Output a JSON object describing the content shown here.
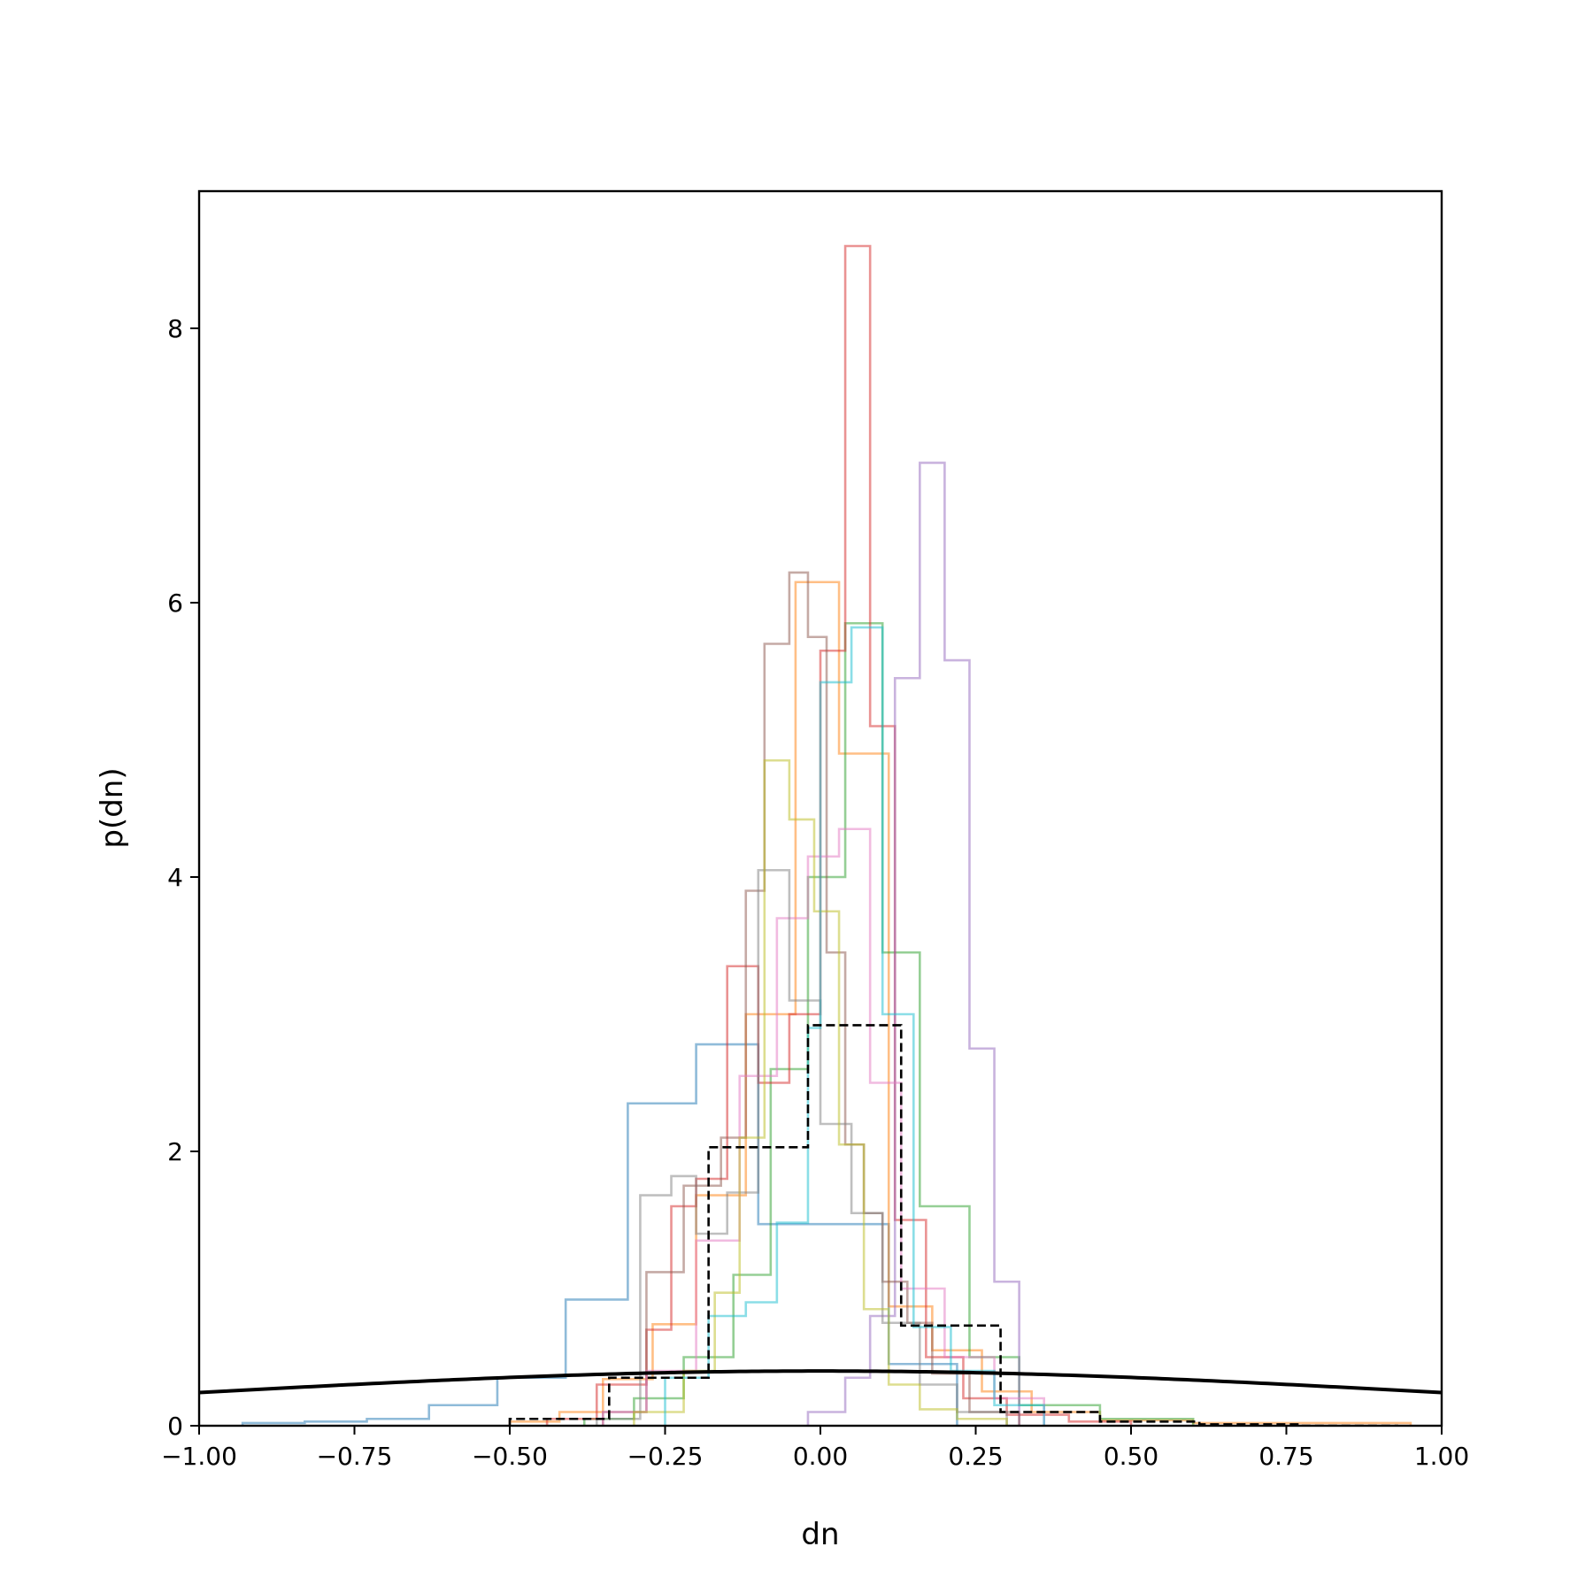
{
  "chart_data": {
    "type": "line",
    "title": "",
    "xlabel": "dn",
    "ylabel": "p(dn)",
    "xlim": [
      -1.0,
      1.0
    ],
    "ylim": [
      0,
      9.0
    ],
    "grid": false,
    "legend": "none",
    "x_ticks": [
      -1.0,
      -0.75,
      -0.5,
      -0.25,
      0.0,
      0.25,
      0.5,
      0.75,
      1.0
    ],
    "x_tick_labels": [
      "−1.00",
      "−0.75",
      "−0.50",
      "−0.25",
      "0.00",
      "0.25",
      "0.50",
      "0.75",
      "1.00"
    ],
    "y_ticks": [
      0,
      2,
      4,
      6,
      8
    ],
    "y_tick_labels": [
      "0",
      "2",
      "4",
      "6",
      "8"
    ],
    "histogram_series": [
      {
        "color": "#1f77b4",
        "edges": [
          -0.93,
          -0.83,
          -0.73,
          -0.63,
          -0.52,
          -0.41,
          -0.31,
          -0.2,
          -0.1,
          0.01,
          0.11,
          0.22
        ],
        "values": [
          0.02,
          0.03,
          0.05,
          0.15,
          0.35,
          0.92,
          2.35,
          2.78,
          1.47,
          1.47,
          0.45
        ]
      },
      {
        "color": "#ff7f0e",
        "edges": [
          -0.5,
          -0.42,
          -0.35,
          -0.27,
          -0.2,
          -0.12,
          -0.04,
          0.03,
          0.11,
          0.18,
          0.26,
          0.34,
          0.45,
          0.6,
          0.95
        ],
        "values": [
          0.03,
          0.1,
          0.34,
          0.74,
          1.68,
          3.0,
          6.15,
          4.9,
          0.87,
          0.55,
          0.25,
          0.1,
          0.04,
          0.02
        ]
      },
      {
        "color": "#2ca02c",
        "edges": [
          -0.38,
          -0.3,
          -0.22,
          -0.14,
          -0.08,
          -0.02,
          0.04,
          0.1,
          0.16,
          0.24,
          0.32,
          0.45,
          0.6
        ],
        "values": [
          0.05,
          0.2,
          0.5,
          1.1,
          2.6,
          4.0,
          5.85,
          3.45,
          1.6,
          0.5,
          0.15,
          0.05
        ]
      },
      {
        "color": "#d62728",
        "edges": [
          -0.44,
          -0.36,
          -0.28,
          -0.24,
          -0.2,
          -0.15,
          -0.1,
          -0.05,
          0.0,
          0.04,
          0.08,
          0.12,
          0.17,
          0.23,
          0.3,
          0.4,
          0.5
        ],
        "values": [
          0.05,
          0.3,
          0.7,
          1.6,
          1.8,
          3.35,
          2.5,
          3.0,
          5.65,
          8.6,
          5.1,
          1.5,
          0.5,
          0.2,
          0.08,
          0.03
        ]
      },
      {
        "color": "#9467bd",
        "edges": [
          -0.02,
          0.04,
          0.08,
          0.12,
          0.16,
          0.2,
          0.24,
          0.28,
          0.32
        ],
        "values": [
          0.1,
          0.35,
          0.8,
          5.45,
          7.02,
          5.58,
          2.75,
          1.05
        ]
      },
      {
        "color": "#8c564b",
        "edges": [
          -0.35,
          -0.28,
          -0.22,
          -0.16,
          -0.12,
          -0.09,
          -0.05,
          -0.02,
          0.01,
          0.04,
          0.07,
          0.1,
          0.14,
          0.18,
          0.24,
          0.32
        ],
        "values": [
          0.1,
          1.12,
          1.75,
          2.1,
          3.9,
          5.7,
          6.22,
          5.75,
          3.45,
          2.05,
          1.55,
          1.05,
          0.75,
          0.38,
          0.1
        ]
      },
      {
        "color": "#e377c2",
        "edges": [
          -0.35,
          -0.28,
          -0.2,
          -0.13,
          -0.07,
          -0.02,
          0.03,
          0.08,
          0.13,
          0.2,
          0.28,
          0.36
        ],
        "values": [
          0.1,
          0.4,
          1.35,
          2.55,
          3.7,
          4.15,
          4.35,
          2.5,
          1.0,
          0.5,
          0.2
        ]
      },
      {
        "color": "#7f7f7f",
        "edges": [
          -0.36,
          -0.29,
          -0.24,
          -0.2,
          -0.15,
          -0.1,
          -0.05,
          0.0,
          0.05,
          0.1,
          0.16,
          0.22,
          0.3
        ],
        "values": [
          0.05,
          1.68,
          1.82,
          1.4,
          1.7,
          4.05,
          3.1,
          2.2,
          1.55,
          0.75,
          0.3,
          0.1
        ]
      },
      {
        "color": "#bcbd22",
        "edges": [
          -0.3,
          -0.22,
          -0.17,
          -0.13,
          -0.09,
          -0.05,
          -0.01,
          0.03,
          0.07,
          0.11,
          0.16,
          0.22,
          0.3
        ],
        "values": [
          0.1,
          0.4,
          0.97,
          2.1,
          4.85,
          4.42,
          3.75,
          2.05,
          0.85,
          0.3,
          0.12,
          0.05
        ]
      },
      {
        "color": "#17becf",
        "edges": [
          -0.25,
          -0.18,
          -0.12,
          -0.07,
          -0.02,
          0.0,
          0.05,
          0.1,
          0.15,
          0.21,
          0.28,
          0.36
        ],
        "values": [
          0.35,
          0.8,
          0.9,
          1.48,
          2.9,
          5.42,
          5.82,
          3.0,
          0.72,
          0.4,
          0.15
        ]
      }
    ],
    "combined_histogram": {
      "color": "#000000",
      "edges": [
        -0.5,
        -0.34,
        -0.18,
        -0.02,
        0.13,
        0.29,
        0.45,
        0.61,
        0.77,
        0.93
      ],
      "values": [
        0.05,
        0.35,
        2.03,
        2.92,
        0.73,
        0.1,
        0.03,
        0.01,
        0.0
      ]
    },
    "reference_curve": {
      "color": "#000000",
      "type": "normal",
      "mean": 0.0,
      "std": 1.0
    }
  }
}
